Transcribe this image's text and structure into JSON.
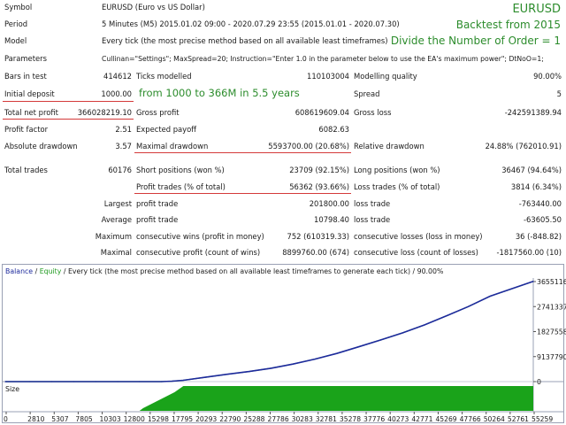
{
  "colors": {
    "balance": "#1d2a9c",
    "equity": "#1f9a1f",
    "size_fill": "#1aa31a",
    "note_green": "#2c8c2c",
    "underline_red": "#d43a3a",
    "grid": "#c8ccd8"
  },
  "header": {
    "symbol_label": "Symbol",
    "symbol_value": "EURUSD (Euro vs US Dollar)",
    "period_label": "Period",
    "period_value": "5 Minutes (M5) 2015.01.02 09:00 - 2020.07.29 23:55 (2015.01.01 - 2020.07.30)",
    "model_label": "Model",
    "model_value": "Every tick (the most precise method based on all available least timeframes)",
    "parameters_label": "Parameters",
    "parameters_value": "Cullinan=\"Settings\"; MaxSpread=20; Instruction=\"Enter 1.0 in the parameter below to use the EA's maximum power\"; DtNoO=1;"
  },
  "notes": {
    "pair": "EURUSD",
    "backtest": "Backtest from 2015",
    "divide": "Divide the Number of Order = 1",
    "growth": "from 1000 to 366M in 5.5 years"
  },
  "stats": {
    "bars_in_test_label": "Bars in test",
    "bars_in_test": "414612",
    "ticks_modelled_label": "Ticks modelled",
    "ticks_modelled": "110103004",
    "modelling_quality_label": "Modelling quality",
    "modelling_quality": "90.00%",
    "initial_deposit_label": "Initial deposit",
    "initial_deposit": "1000.00",
    "spread_label": "Spread",
    "spread": "5",
    "total_net_profit_label": "Total net profit",
    "total_net_profit": "366028219.10",
    "gross_profit_label": "Gross profit",
    "gross_profit": "608619609.04",
    "gross_loss_label": "Gross loss",
    "gross_loss": "-242591389.94",
    "profit_factor_label": "Profit factor",
    "profit_factor": "2.51",
    "expected_payoff_label": "Expected payoff",
    "expected_payoff": "6082.63",
    "absolute_drawdown_label": "Absolute drawdown",
    "absolute_drawdown": "3.57",
    "maximal_drawdown_label": "Maximal drawdown",
    "maximal_drawdown": "5593700.00 (20.68%)",
    "relative_drawdown_label": "Relative drawdown",
    "relative_drawdown": "24.88% (762010.91)",
    "total_trades_label": "Total trades",
    "total_trades": "60176",
    "short_positions_label": "Short positions (won %)",
    "short_positions": "23709 (92.15%)",
    "long_positions_label": "Long positions (won %)",
    "long_positions": "36467 (94.64%)",
    "profit_trades_label": "Profit trades (% of total)",
    "profit_trades": "56362 (93.66%)",
    "loss_trades_label": "Loss trades (% of total)",
    "loss_trades": "3814 (6.34%)",
    "largest_label": "Largest",
    "largest_profit_trade_label": "profit trade",
    "largest_profit_trade": "201800.00",
    "largest_loss_trade_label": "loss trade",
    "largest_loss_trade": "-763440.00",
    "average_label": "Average",
    "average_profit_trade_label": "profit trade",
    "average_profit_trade": "10798.40",
    "average_loss_trade_label": "loss trade",
    "average_loss_trade": "-63605.50",
    "maximum_label": "Maximum",
    "max_consec_wins_label": "consecutive wins (profit in money)",
    "max_consec_wins": "752 (610319.33)",
    "max_consec_losses_label": "consecutive losses (loss in money)",
    "max_consec_losses": "36 (-848.82)",
    "maximal_label": "Maximal",
    "maximal_consec_profit_label": "consecutive profit (count of wins)",
    "maximal_consec_profit": "8899760.00 (674)",
    "maximal_consec_loss_label": "consecutive loss (count of losses)",
    "maximal_consec_loss": "-1817560.00 (10)"
  },
  "graph": {
    "legend_balance": "Balance",
    "legend_sep": " / ",
    "legend_equity": "Equity",
    "legend_rest": " / Every tick (the most precise method based on all available least timeframes to generate each tick) / 90.00%",
    "size_label": "Size"
  },
  "chart_data": {
    "type": "line",
    "series": [
      {
        "name": "Balance",
        "x": [
          0,
          2810,
          5307,
          7805,
          10303,
          12800,
          15298,
          17795,
          19000,
          20293,
          22790,
          25288,
          27786,
          30283,
          32781,
          35278,
          37776,
          40273,
          42771,
          45269,
          47766,
          50264,
          52761,
          55259,
          60176
        ],
        "values": [
          1000,
          1000,
          1000,
          1000,
          1000,
          1000,
          1000,
          60000,
          1500000,
          5000000,
          16000000,
          27000000,
          37000000,
          49000000,
          64000000,
          82000000,
          103000000,
          127000000,
          152000000,
          178000000,
          207000000,
          240000000,
          274000000,
          312000000,
          366028219
        ]
      }
    ],
    "x_ticks": [
      "0",
      "2810",
      "5307",
      "7805",
      "10303",
      "12800",
      "15298",
      "17795",
      "20293",
      "22790",
      "25288",
      "27786",
      "30283",
      "32781",
      "35278",
      "37776",
      "40273",
      "42771",
      "45269",
      "47766",
      "50264",
      "52761",
      "55259"
    ],
    "y_ticks": [
      "0",
      "91377903",
      "182755806",
      "274133709",
      "365511612"
    ],
    "ylim": [
      0,
      365511612
    ],
    "grid": false
  }
}
